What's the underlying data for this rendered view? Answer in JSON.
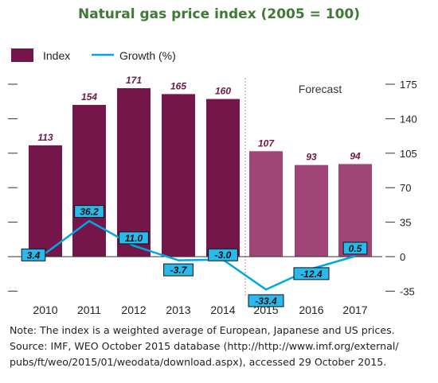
{
  "chart_data": {
    "type": "bar+line",
    "title": "Natural gas price index (2005 = 100)",
    "categories": [
      "2010",
      "2011",
      "2012",
      "2013",
      "2014",
      "2015",
      "2016",
      "2017"
    ],
    "series": [
      {
        "name": "Index",
        "type": "bar",
        "axis": "right",
        "values": [
          113,
          154,
          171,
          165,
          160,
          107,
          93,
          94
        ]
      },
      {
        "name": "Growth (%)",
        "type": "line",
        "axis": "right",
        "values": [
          3.4,
          36.2,
          11.0,
          -3.7,
          -3.0,
          -33.4,
          -12.4,
          0.5
        ],
        "labels": [
          "3.4",
          "36.2",
          "11.0",
          "-3.7",
          "-3.0",
          "-33.4",
          "-12.4",
          "0.5"
        ]
      }
    ],
    "forecast_from": "2015",
    "forecast_label": "Forecast",
    "y_ticks": [
      175,
      140,
      105,
      70,
      35,
      0,
      -35
    ],
    "ylim": [
      -45,
      185
    ],
    "legend_position": "top-left",
    "colors": {
      "title": "#3e7a34",
      "bar_actual": "#74164a",
      "bar_forecast": "#a04377",
      "bar_label": "#6e1745",
      "line": "#00a8e3",
      "label_box": "#29b9ea"
    }
  },
  "notes": {
    "note": "Note: The index is a weighted average of European, Japanese and US prices.",
    "source_lines": [
      "Source: IMF, WEO October 2015 database (http://http://www.imf.org/external/",
      "pubs/ft/weo/2015/01/weodata/download.aspx), accessed 29 October 2015."
    ]
  }
}
